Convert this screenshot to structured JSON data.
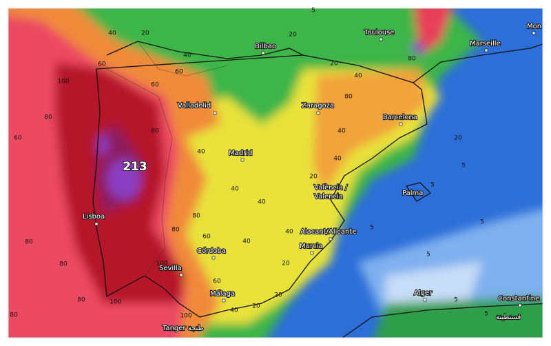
{
  "cities": [
    "Bilbao",
    "Toulouse",
    "Marseille",
    "Mon",
    "Valladolid",
    "Zaragoza",
    "Barcelona",
    "Madrid",
    "València /",
    "Valencia",
    "Palma",
    "Lisboa",
    "Alacant/Alicante",
    "Murcia",
    "Córdoba",
    "Sevilla",
    "Málaga",
    "Alger",
    "Constantine",
    "قسنطينة",
    "Tanger طنجة"
  ],
  "max_label": "213",
  "contour_labels": [
    "40",
    "20",
    "40",
    "60",
    "100",
    "60",
    "60",
    "80",
    "80",
    "60",
    "40",
    "40",
    "40",
    "80",
    "80",
    "40",
    "40",
    "80",
    "60",
    "80",
    "100",
    "60",
    "80",
    "100",
    "100",
    "40",
    "20",
    "20",
    "80",
    "5",
    "20",
    "20",
    "80",
    "40",
    "40",
    "80",
    "20",
    "5",
    "5",
    "5",
    "5",
    "5",
    "5",
    "5",
    "20",
    "40",
    "20"
  ]
}
